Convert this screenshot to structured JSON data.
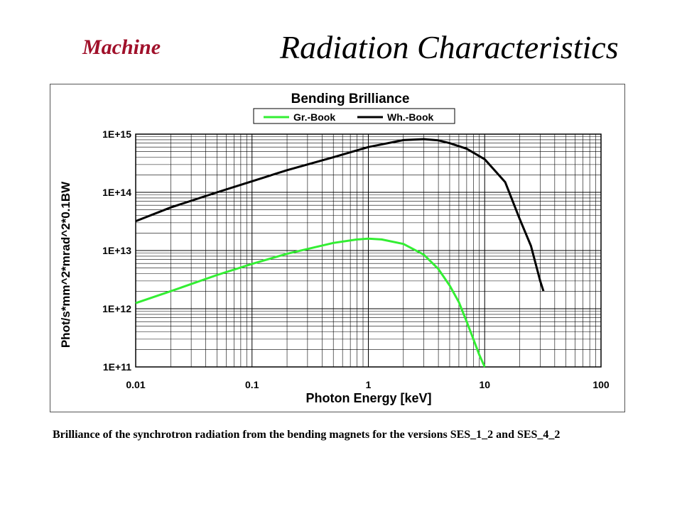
{
  "slide": {
    "header_left": "Machine",
    "title": "Radiation Characteristics",
    "caption": "Brilliance of the synchrotron radiation from the bending magnets for the versions SES_1_2 and SES_4_2"
  },
  "chart_data": {
    "type": "line",
    "title": "Bending Brilliance",
    "xlabel": "Photon Energy [keV]",
    "ylabel": "Phot/s*mm^2*mrad^2*0.1BW",
    "xscale": "log",
    "yscale": "log",
    "xlim": [
      0.01,
      100
    ],
    "ylim": [
      100000000000.0,
      1000000000000000.0
    ],
    "xticks": [
      0.01,
      0.1,
      1,
      10,
      100
    ],
    "xtick_labels": [
      "0.01",
      "0.1",
      "1",
      "10",
      "100"
    ],
    "yticks": [
      100000000000.0,
      1000000000000.0,
      10000000000000.0,
      100000000000000.0,
      1000000000000000.0
    ],
    "ytick_labels": [
      "1E+11",
      "1E+12",
      "1E+13",
      "1E+14",
      "1E+15"
    ],
    "grid": true,
    "legend_position": "top-center",
    "series": [
      {
        "name": "Gr.-Book",
        "color": "#33ee33",
        "x": [
          0.01,
          0.02,
          0.05,
          0.1,
          0.2,
          0.5,
          0.8,
          1.0,
          1.3,
          2.0,
          3.0,
          4.0,
          5.0,
          6.0,
          7.0,
          8.0,
          9.0,
          10.0
        ],
        "y": [
          1250000000000.0,
          2000000000000.0,
          3800000000000.0,
          5900000000000.0,
          8800000000000.0,
          13500000000000.0,
          15500000000000.0,
          16000000000000.0,
          15500000000000.0,
          13000000000000.0,
          8500000000000.0,
          4800000000000.0,
          2500000000000.0,
          1300000000000.0,
          600000000000.0,
          300000000000.0,
          160000000000.0,
          100000000000.0
        ]
      },
      {
        "name": "Wh.-Book",
        "color": "#000000",
        "x": [
          0.01,
          0.02,
          0.05,
          0.1,
          0.2,
          0.5,
          1.0,
          2.0,
          3.0,
          4.0,
          5.0,
          7.0,
          10.0,
          15.0,
          20.0,
          25.0,
          30.0,
          32.0
        ],
        "y": [
          32000000000000.0,
          55000000000000.0,
          100000000000000.0,
          155000000000000.0,
          240000000000000.0,
          400000000000000.0,
          600000000000000.0,
          790000000000000.0,
          820000000000000.0,
          780000000000000.0,
          700000000000000.0,
          560000000000000.0,
          370000000000000.0,
          150000000000000.0,
          35000000000000.0,
          12000000000000.0,
          3000000000000.0,
          2000000000000.0
        ]
      }
    ]
  }
}
